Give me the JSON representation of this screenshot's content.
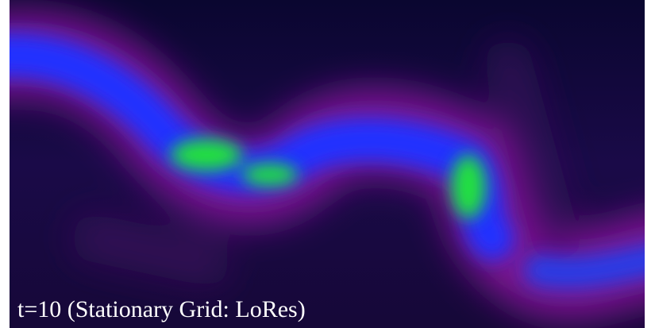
{
  "caption": "t=10 (Stationary Grid: LoRes)"
}
